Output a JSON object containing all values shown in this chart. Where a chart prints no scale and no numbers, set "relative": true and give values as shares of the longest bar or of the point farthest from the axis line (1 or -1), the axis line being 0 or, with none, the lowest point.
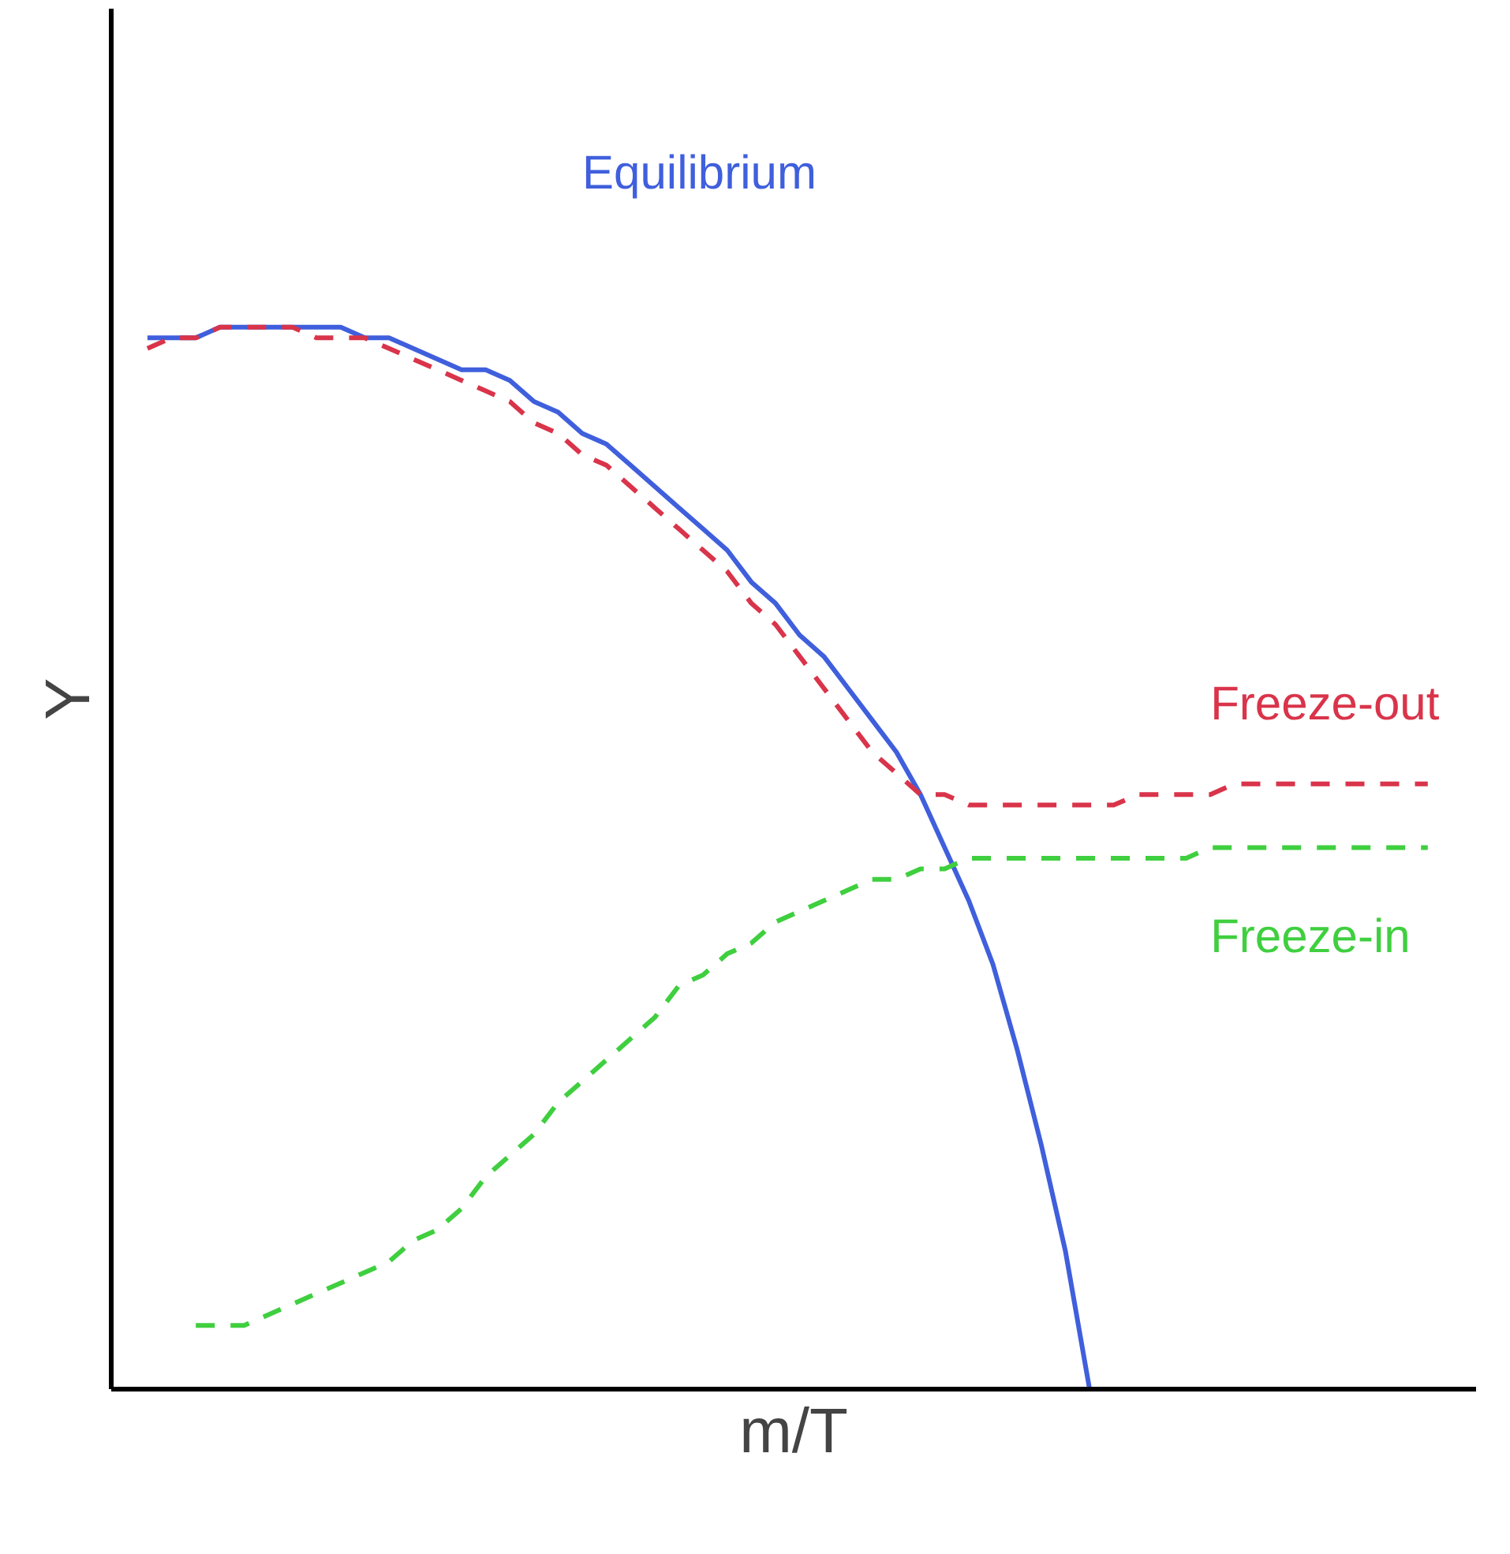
{
  "chart_data": {
    "type": "line",
    "relative": true,
    "xlabel": "m/T",
    "ylabel": "Y",
    "legend": false,
    "categories": [
      null,
      null,
      null,
      null,
      null,
      null,
      null,
      null,
      null,
      null,
      null,
      null,
      null,
      null,
      null,
      null,
      null,
      null,
      null,
      null,
      null,
      null,
      null,
      null,
      null,
      null,
      null,
      null,
      null,
      null,
      null,
      null,
      null,
      null,
      null,
      null,
      null,
      null,
      null,
      null,
      null,
      null,
      null,
      null,
      null,
      null,
      null,
      null,
      null,
      null,
      null,
      null,
      null,
      null
    ],
    "series": [
      {
        "name": "Equilibrium",
        "color": "#3f5fdc",
        "line_style": "solid",
        "values": [
          0.99,
          0.99,
          0.99,
          1.0,
          1.0,
          1.0,
          1.0,
          1.0,
          1.0,
          0.99,
          0.99,
          0.98,
          0.97,
          0.96,
          0.96,
          0.95,
          0.93,
          0.92,
          0.9,
          0.89,
          0.87,
          0.85,
          0.83,
          0.81,
          0.79,
          0.76,
          0.74,
          0.71,
          0.69,
          0.66,
          0.63,
          0.6,
          0.56,
          0.51,
          0.46,
          0.4,
          0.32,
          0.23,
          0.13,
          0.0,
          null,
          null,
          null,
          null,
          null,
          null,
          null,
          null,
          null,
          null,
          null,
          null,
          null,
          null
        ]
      },
      {
        "name": "Freeze-out",
        "color": "#d9344a",
        "line_style": "dashed",
        "values": [
          0.98,
          0.99,
          0.99,
          1.0,
          1.0,
          1.0,
          1.0,
          0.99,
          0.99,
          0.99,
          0.98,
          0.97,
          0.96,
          0.95,
          0.94,
          0.93,
          0.91,
          0.9,
          0.88,
          0.87,
          0.85,
          0.83,
          0.81,
          0.79,
          0.77,
          0.74,
          0.72,
          0.69,
          0.66,
          0.63,
          0.6,
          0.58,
          0.56,
          0.56,
          0.55,
          0.55,
          0.55,
          0.55,
          0.55,
          0.55,
          0.55,
          0.56,
          0.56,
          0.56,
          0.56,
          0.57,
          0.57,
          0.57,
          0.57,
          0.57,
          0.57,
          0.57,
          0.57,
          0.57
        ]
      },
      {
        "name": "Freeze-in",
        "color": "#3fcf3f",
        "line_style": "dashed",
        "values": [
          null,
          null,
          0.06,
          0.06,
          0.06,
          0.07,
          0.08,
          0.09,
          0.1,
          0.11,
          0.12,
          0.14,
          0.15,
          0.17,
          0.2,
          0.22,
          0.24,
          0.27,
          0.29,
          0.31,
          0.33,
          0.35,
          0.38,
          0.39,
          0.41,
          0.42,
          0.44,
          0.45,
          0.46,
          0.47,
          0.48,
          0.48,
          0.49,
          0.49,
          0.5,
          0.5,
          0.5,
          0.5,
          0.5,
          0.5,
          0.5,
          0.5,
          0.5,
          0.5,
          0.51,
          0.51,
          0.51,
          0.51,
          0.51,
          0.51,
          0.51,
          0.51,
          0.51,
          0.51
        ]
      }
    ]
  }
}
